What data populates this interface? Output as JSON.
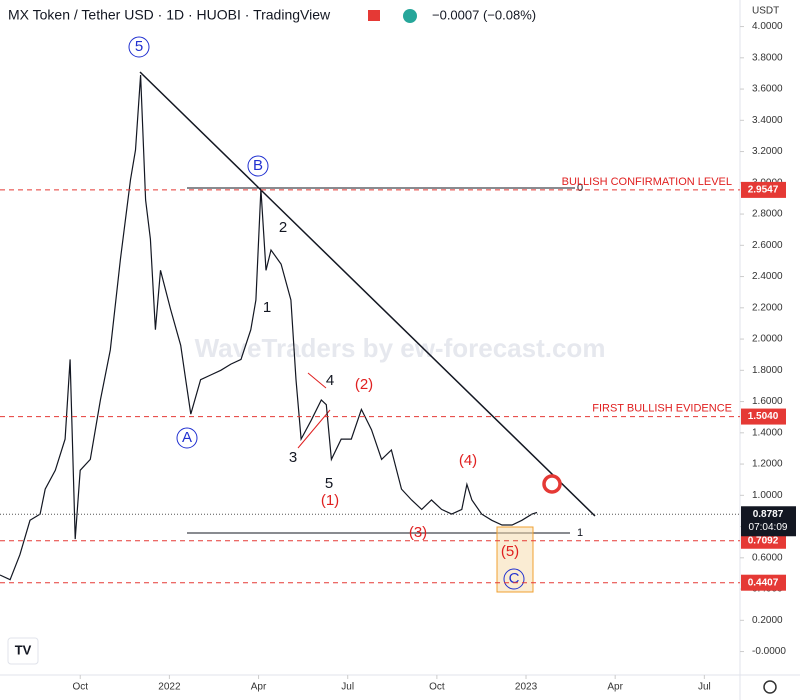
{
  "header": {
    "symbol": "MX Token / Tether USD · 1D · HUOBI · TradingView",
    "change": "−0.0007 (−0.08%)"
  },
  "chart_data": {
    "type": "line",
    "currency": "USDT",
    "watermark": "WaveTraders by ew-forecast.com",
    "color": "#131722",
    "grid": false,
    "x": [
      6.3,
      6.64,
      6.97,
      7.31,
      7.65,
      7.82,
      8.16,
      8.49,
      8.66,
      8.83,
      9.0,
      9.34,
      9.68,
      10.01,
      10.35,
      10.69,
      10.86,
      11.03,
      11.2,
      11.36,
      11.53,
      11.7,
      12.04,
      12.38,
      12.55,
      12.72,
      13.05,
      13.39,
      13.73,
      14.07,
      14.41,
      14.74,
      14.91,
      15.08,
      15.25,
      15.42,
      15.76,
      16.09,
      16.26,
      16.43,
      16.77,
      17.11,
      17.28,
      17.45,
      17.78,
      18.12,
      18.46,
      18.8,
      19.14,
      19.47,
      19.81,
      20.15,
      20.49,
      20.82,
      21.16,
      21.5,
      21.84,
      22.01,
      22.18,
      22.51,
      22.85,
      23.19,
      23.53,
      23.86,
      24.2,
      24.37
    ],
    "values": [
      0.49,
      0.46,
      0.62,
      0.84,
      0.88,
      1.04,
      1.16,
      1.36,
      1.87,
      0.72,
      1.16,
      1.23,
      1.61,
      1.93,
      2.51,
      3.02,
      3.21,
      3.69,
      2.89,
      2.64,
      2.06,
      2.44,
      2.19,
      1.96,
      1.74,
      1.52,
      1.74,
      1.77,
      1.8,
      1.84,
      1.87,
      2.06,
      2.25,
      2.96,
      2.44,
      2.57,
      2.48,
      2.25,
      1.74,
      1.36,
      1.48,
      1.61,
      1.58,
      1.23,
      1.36,
      1.36,
      1.55,
      1.42,
      1.23,
      1.29,
      1.04,
      0.97,
      0.91,
      0.97,
      0.91,
      0.88,
      0.91,
      1.07,
      0.97,
      0.88,
      0.84,
      0.81,
      0.81,
      0.84,
      0.88,
      0.89
    ],
    "xlim": [
      6.3,
      31.2
    ],
    "xticks": [
      {
        "value": 9,
        "label": "Oct"
      },
      {
        "value": 12,
        "label": "2022"
      },
      {
        "value": 15,
        "label": "Apr"
      },
      {
        "value": 18,
        "label": "Jul"
      },
      {
        "value": 21,
        "label": "Oct"
      },
      {
        "value": 24,
        "label": "2023"
      },
      {
        "value": 27,
        "label": "Apr"
      },
      {
        "value": 30,
        "label": "Jul"
      }
    ],
    "ylim": [
      -0.15,
      4.17
    ],
    "yticks": [
      {
        "value": 0,
        "label": "-0.0000"
      },
      {
        "value": 0.2,
        "label": "0.2000"
      },
      {
        "value": 0.4,
        "label": "0.4000"
      },
      {
        "value": 0.6,
        "label": "0.6000"
      },
      {
        "value": 0.8,
        "label": "0.8000"
      },
      {
        "value": 1.0,
        "label": "1.0000"
      },
      {
        "value": 1.2,
        "label": "1.2000"
      },
      {
        "value": 1.4,
        "label": "1.4000"
      },
      {
        "value": 1.6,
        "label": "1.6000"
      },
      {
        "value": 1.8,
        "label": "1.8000"
      },
      {
        "value": 2.0,
        "label": "2.0000"
      },
      {
        "value": 2.2,
        "label": "2.2000"
      },
      {
        "value": 2.4,
        "label": "2.4000"
      },
      {
        "value": 2.6,
        "label": "2.6000"
      },
      {
        "value": 2.8,
        "label": "2.8000"
      },
      {
        "value": 3.0,
        "label": "3.0000"
      },
      {
        "value": 3.2,
        "label": "3.2000"
      },
      {
        "value": 3.4,
        "label": "3.4000"
      },
      {
        "value": 3.6,
        "label": "3.6000"
      },
      {
        "value": 3.8,
        "label": "3.8000"
      },
      {
        "value": 4.0,
        "label": "4.0000"
      }
    ],
    "levels": [
      {
        "value": 2.9547,
        "value_label": "2.9547",
        "name": "BULLISH CONFIRMATION LEVEL"
      },
      {
        "value": 1.504,
        "value_label": "1.5040",
        "name": "FIRST BULLISH EVIDENCE"
      },
      {
        "value": 0.7092,
        "value_label": "0.7092"
      },
      {
        "value": 0.4407,
        "value_label": "0.4407"
      }
    ],
    "last_price": {
      "value": 0.8787,
      "countdown": "07:04:09"
    },
    "wave_labels": [
      "5",
      "B",
      "2",
      "1",
      "4",
      "3",
      "5",
      "A",
      "C",
      "(1)",
      "(2)",
      "(3)",
      "(4)",
      "(5)"
    ],
    "fib_labels": [
      "0",
      "1"
    ]
  }
}
